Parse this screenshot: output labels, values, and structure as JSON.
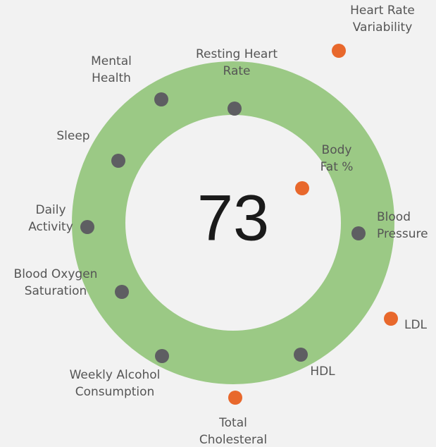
{
  "score": "73",
  "metrics": [
    {
      "label": [
        "Resting Heart",
        "Rate"
      ],
      "color": "#5e5e62"
    },
    {
      "label": [
        "Mental",
        "Health"
      ],
      "color": "#5e5e62"
    },
    {
      "label": [
        "Sleep"
      ],
      "color": "#5e5e62"
    },
    {
      "label": [
        "Daily",
        "Activity"
      ],
      "color": "#5e5e62"
    },
    {
      "label": [
        "Blood Oxygen",
        "Saturation"
      ],
      "color": "#5e5e62"
    },
    {
      "label": [
        "Weekly Alcohol",
        "Consumption"
      ],
      "color": "#5e5e62"
    },
    {
      "label": [
        "Total",
        "Cholesteral"
      ],
      "color": "#e8682c"
    },
    {
      "label": [
        "HDL"
      ],
      "color": "#5e5e62"
    },
    {
      "label": [
        "LDL"
      ],
      "color": "#e8682c"
    },
    {
      "label": [
        "Blood",
        "Pressure"
      ],
      "color": "#5e5e62"
    },
    {
      "label": [
        "Body",
        "Fat %"
      ],
      "color": "#e8682c"
    },
    {
      "label": [
        "Heart Rate",
        "Variability"
      ],
      "color": "#e8682c"
    }
  ]
}
